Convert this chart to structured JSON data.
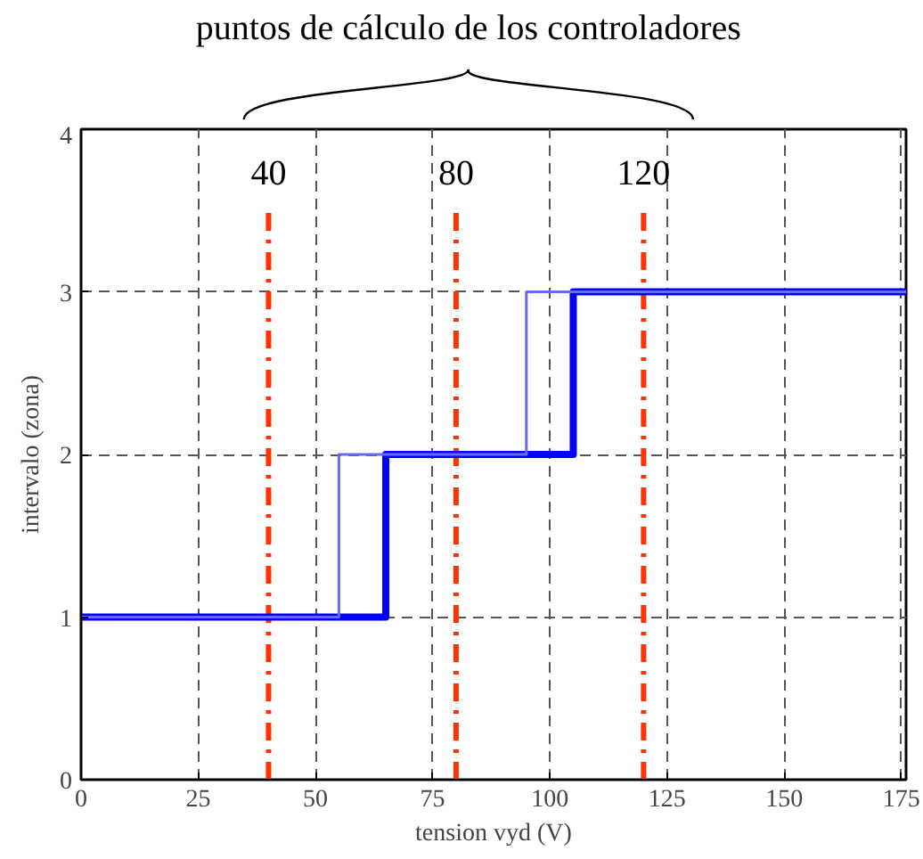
{
  "chart_data": {
    "type": "line",
    "title": "puntos de cálculo de los controladores",
    "xlabel": "tension vyd (V)",
    "ylabel": "intervalo (zona)",
    "series": [
      {
        "color": "#0000ff",
        "x": [
          0,
          65,
          65,
          105,
          105,
          176
        ],
        "values": [
          1,
          1,
          2,
          2,
          3,
          3
        ]
      },
      {
        "color": "#6a6af0",
        "x": [
          176,
          95,
          95,
          55,
          55,
          0
        ],
        "values": [
          3,
          3,
          2,
          2,
          1,
          1
        ]
      }
    ],
    "xlim": [
      0,
      176
    ],
    "ylim": [
      0,
      4
    ],
    "xticks": [
      0,
      25,
      50,
      75,
      100,
      125,
      150,
      175
    ],
    "yticks": [
      0,
      1,
      2,
      3,
      4
    ],
    "grid": true,
    "line_style": "solid",
    "marker": "none",
    "ref_lines": [
      {
        "axis": "x",
        "value": 40,
        "label": "40",
        "color": "#ff3300",
        "line_style": "dashdot"
      },
      {
        "axis": "x",
        "value": 80,
        "label": "80",
        "color": "#ff3300",
        "line_style": "dashdot"
      },
      {
        "axis": "x",
        "value": 120,
        "label": "120",
        "color": "#ff3300",
        "line_style": "dashdot"
      }
    ]
  }
}
